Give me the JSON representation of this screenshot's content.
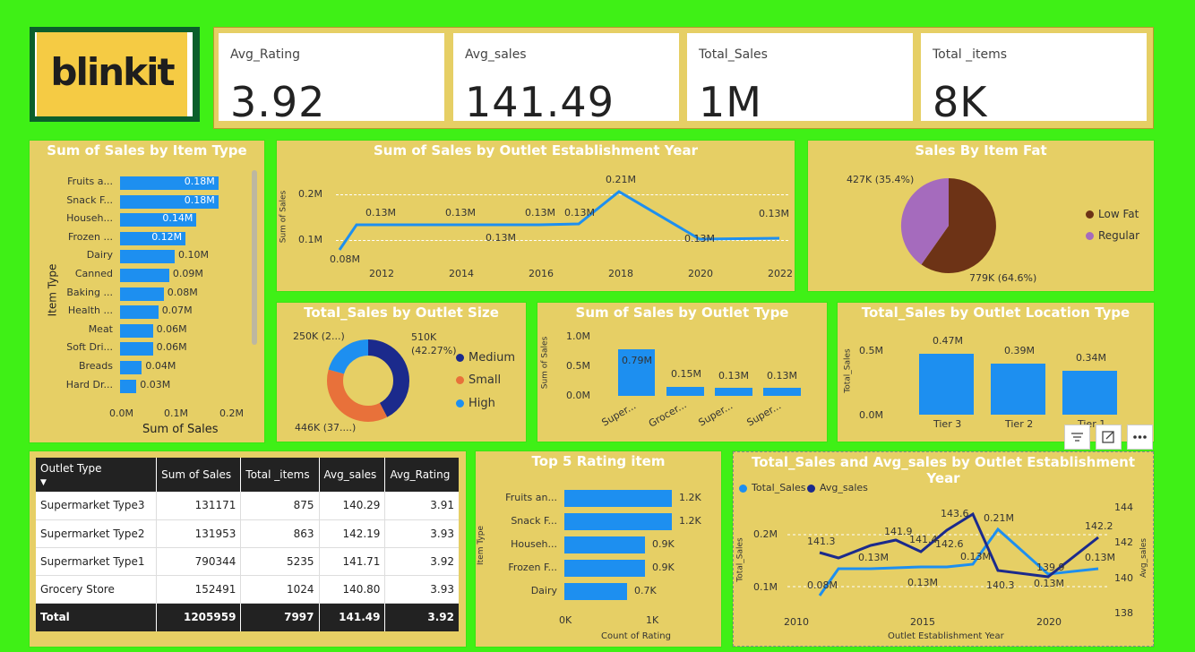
{
  "logo": {
    "text": "blinkit"
  },
  "kpis": [
    {
      "title": "Avg_Rating",
      "value": "3.92"
    },
    {
      "title": "Avg_sales",
      "value": "141.49"
    },
    {
      "title": "Total_Sales",
      "value": "1M"
    },
    {
      "title": "Total _items",
      "value": "8K"
    }
  ],
  "item_type": {
    "title": "Sum of Sales by Item Type",
    "ylabel": "Item Type",
    "xlabel": "Sum of Sales",
    "ticks": [
      "0.0M",
      "0.1M",
      "0.2M"
    ],
    "categories": [
      "Fruits a...",
      "Snack F...",
      "Househ...",
      "Frozen ...",
      "Dairy",
      "Canned",
      "Baking ...",
      "Health ...",
      "Meat",
      "Soft Dri...",
      "Breads",
      "Hard Dr..."
    ],
    "values": [
      0.18,
      0.18,
      0.14,
      0.12,
      0.1,
      0.09,
      0.08,
      0.07,
      0.06,
      0.06,
      0.04,
      0.03
    ],
    "labels": [
      "0.18M",
      "0.18M",
      "0.14M",
      "0.12M",
      "0.10M",
      "0.09M",
      "0.08M",
      "0.07M",
      "0.06M",
      "0.06M",
      "0.04M",
      "0.03M"
    ]
  },
  "est_year": {
    "title": "Sum of Sales by Outlet Establishment Year",
    "ylabel": "Sum of Sales",
    "yticks": [
      "0.2M",
      "0.1M"
    ],
    "xticks": [
      "2012",
      "2014",
      "2016",
      "2018",
      "2020",
      "2022"
    ],
    "labels": [
      "0.08M",
      "0.13M",
      "0.13M",
      "0.13M",
      "0.13M",
      "0.13M",
      "0.21M",
      "0.13M",
      "0.13M"
    ]
  },
  "fat": {
    "title": "Sales By Item Fat",
    "legend": [
      "Low Fat",
      "Regular"
    ],
    "labels": [
      "427K (35.4%)",
      "779K (64.6%)"
    ],
    "colors": [
      "#6d3316",
      "#a56bbd"
    ]
  },
  "outlet_size": {
    "title": "Total_Sales by Outlet Size",
    "legend": [
      "Medium",
      "Small",
      "High"
    ],
    "labels": [
      "250K (2...)",
      "510K (42.27%)",
      "446K (37....)"
    ],
    "colors": [
      "#1b2a8c",
      "#e8713a",
      "#1d8ff0"
    ]
  },
  "outlet_type": {
    "title": "Sum of Sales by Outlet Type",
    "ylabel": "Sum of Sales",
    "yticks": [
      "1.0M",
      "0.5M",
      "0.0M"
    ],
    "categories": [
      "Super...",
      "Grocer...",
      "Super...",
      "Super..."
    ],
    "labels": [
      "0.79M",
      "0.15M",
      "0.13M",
      "0.13M"
    ]
  },
  "location": {
    "title": "Total_Sales by Outlet Location Type",
    "ylabel": "Total_Sales",
    "yticks": [
      "0.5M",
      "0.0M"
    ],
    "categories": [
      "Tier 3",
      "Tier 2",
      "Tier 1"
    ],
    "labels": [
      "0.47M",
      "0.39M",
      "0.34M"
    ]
  },
  "table": {
    "headers": [
      "Outlet Type",
      "Sum of Sales",
      "Total _items",
      "Avg_sales",
      "Avg_Rating"
    ],
    "rows": [
      [
        "Supermarket Type3",
        "131171",
        "875",
        "140.29",
        "3.91"
      ],
      [
        "Supermarket Type2",
        "131953",
        "863",
        "142.19",
        "3.93"
      ],
      [
        "Supermarket Type1",
        "790344",
        "5235",
        "141.71",
        "3.92"
      ],
      [
        "Grocery Store",
        "152491",
        "1024",
        "140.80",
        "3.93"
      ]
    ],
    "total": [
      "Total",
      "1205959",
      "7997",
      "141.49",
      "3.92"
    ]
  },
  "top5": {
    "title": "Top 5 Rating item",
    "ylabel": "Item Type",
    "xlabel": "Count of Rating",
    "ticks": [
      "0K",
      "1K"
    ],
    "categories": [
      "Fruits an...",
      "Snack F...",
      "Househ...",
      "Frozen F...",
      "Dairy"
    ],
    "labels": [
      "1.2K",
      "1.2K",
      "0.9K",
      "0.9K",
      "0.7K"
    ]
  },
  "combo": {
    "title": "Total_Sales and Avg_sales by Outlet Establishment Year",
    "legend": [
      "Total_Sales",
      "Avg_sales"
    ],
    "y1label": "Total_Sales",
    "y2label": "Avg_sales",
    "xlabel": "Outlet Establishment Year",
    "y1ticks": [
      "0.2M",
      "0.1M"
    ],
    "y2ticks": [
      "144",
      "142",
      "140",
      "138"
    ],
    "xticks": [
      "2010",
      "2015",
      "2020"
    ],
    "avg_labels": [
      "141.3",
      "141.9",
      "141.4",
      "142.6",
      "143.6",
      "140.3",
      "139.9",
      "142.2"
    ],
    "sales_labels": [
      "0.08M",
      "0.13M",
      "0.13M",
      "0.13M",
      "0.21M",
      "0.13M",
      "0.13M"
    ]
  },
  "chart_data": [
    {
      "type": "bar",
      "title": "Sum of Sales by Item Type",
      "categories": [
        "Fruits a...",
        "Snack F...",
        "Househ...",
        "Frozen ...",
        "Dairy",
        "Canned",
        "Baking ...",
        "Health ...",
        "Meat",
        "Soft Dri...",
        "Breads",
        "Hard Dr..."
      ],
      "values": [
        0.18,
        0.18,
        0.14,
        0.12,
        0.1,
        0.09,
        0.08,
        0.07,
        0.06,
        0.06,
        0.04,
        0.03
      ],
      "xlabel": "Sum of Sales",
      "ylabel": "Item Type"
    },
    {
      "type": "line",
      "title": "Sum of Sales by Outlet Establishment Year",
      "x": [
        2011,
        2012,
        2014,
        2015,
        2016,
        2017,
        2018,
        2020,
        2022
      ],
      "values": [
        0.08,
        0.13,
        0.13,
        0.13,
        0.13,
        0.13,
        0.21,
        0.13,
        0.13
      ],
      "ylabel": "Sum of Sales"
    },
    {
      "type": "pie",
      "title": "Sales By Item Fat",
      "categories": [
        "Low Fat",
        "Regular"
      ],
      "values": [
        779,
        427
      ]
    },
    {
      "type": "pie",
      "title": "Total_Sales by Outlet Size",
      "categories": [
        "Medium",
        "Small",
        "High"
      ],
      "values": [
        510,
        446,
        250
      ]
    },
    {
      "type": "bar",
      "title": "Sum of Sales by Outlet Type",
      "categories": [
        "Super...",
        "Grocer...",
        "Super...",
        "Super..."
      ],
      "values": [
        0.79,
        0.15,
        0.13,
        0.13
      ],
      "ylabel": "Sum of Sales"
    },
    {
      "type": "bar",
      "title": "Total_Sales by Outlet Location Type",
      "categories": [
        "Tier 3",
        "Tier 2",
        "Tier 1"
      ],
      "values": [
        0.47,
        0.39,
        0.34
      ],
      "ylabel": "Total_Sales"
    },
    {
      "type": "bar",
      "title": "Top 5 Rating item",
      "categories": [
        "Fruits an...",
        "Snack F...",
        "Househ...",
        "Frozen F...",
        "Dairy"
      ],
      "values": [
        1.2,
        1.2,
        0.9,
        0.9,
        0.7
      ],
      "xlabel": "Count of Rating",
      "ylabel": "Item Type"
    },
    {
      "type": "line",
      "title": "Total_Sales and Avg_sales by Outlet Establishment Year",
      "x": [
        2011,
        2012,
        2013,
        2014,
        2015,
        2016,
        2017,
        2018,
        2020,
        2022
      ],
      "series": [
        {
          "name": "Total_Sales",
          "values": [
            0.08,
            0.13,
            0.13,
            0.13,
            0.13,
            0.13,
            0.13,
            0.21,
            0.13,
            0.13
          ]
        },
        {
          "name": "Avg_sales",
          "values": [
            141.3,
            141.0,
            141.5,
            141.9,
            141.4,
            142.6,
            143.6,
            140.3,
            139.9,
            142.2
          ]
        }
      ]
    }
  ]
}
